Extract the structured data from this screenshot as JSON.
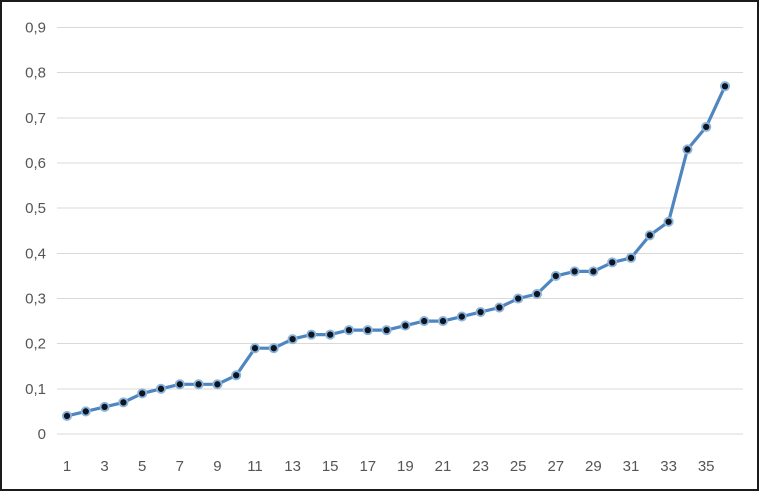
{
  "chart_data": {
    "type": "line",
    "title": "",
    "xlabel": "",
    "ylabel": "",
    "x": [
      1,
      2,
      3,
      4,
      5,
      6,
      7,
      8,
      9,
      10,
      11,
      12,
      13,
      14,
      15,
      16,
      17,
      18,
      19,
      20,
      21,
      22,
      23,
      24,
      25,
      26,
      27,
      28,
      29,
      30,
      31,
      32,
      33,
      34,
      35,
      36
    ],
    "values": [
      0.04,
      0.05,
      0.06,
      0.07,
      0.09,
      0.1,
      0.11,
      0.11,
      0.11,
      0.13,
      0.19,
      0.19,
      0.21,
      0.22,
      0.22,
      0.23,
      0.23,
      0.23,
      0.24,
      0.25,
      0.25,
      0.26,
      0.27,
      0.28,
      0.3,
      0.31,
      0.35,
      0.36,
      0.36,
      0.38,
      0.39,
      0.44,
      0.47,
      0.63,
      0.68,
      0.77
    ],
    "x_tick_labels": [
      "1",
      "3",
      "5",
      "7",
      "9",
      "11",
      "13",
      "15",
      "17",
      "19",
      "21",
      "23",
      "25",
      "27",
      "29",
      "31",
      "33",
      "35"
    ],
    "x_tick_positions": [
      1,
      3,
      5,
      7,
      9,
      11,
      13,
      15,
      17,
      19,
      21,
      23,
      25,
      27,
      29,
      31,
      33,
      35
    ],
    "y_tick_labels_bottom_to_top": [
      "0",
      "0,1",
      "0,2",
      "0,3",
      "0,4",
      "0,5",
      "0,6",
      "0,7",
      "0,8",
      "0,9"
    ],
    "ylim": [
      0,
      0.9
    ],
    "y_tick_step": 0.1,
    "decimal_separator": ",",
    "grid": "horizontal-only",
    "legend": "none",
    "colors": {
      "line": "#4f86c0",
      "marker_fill": "#0e1520",
      "marker_ring": "#8ab4dc",
      "gridline": "#d9d9d9",
      "tick_label": "#555555",
      "background": "#ffffff",
      "border": "#1b1b1b"
    }
  }
}
